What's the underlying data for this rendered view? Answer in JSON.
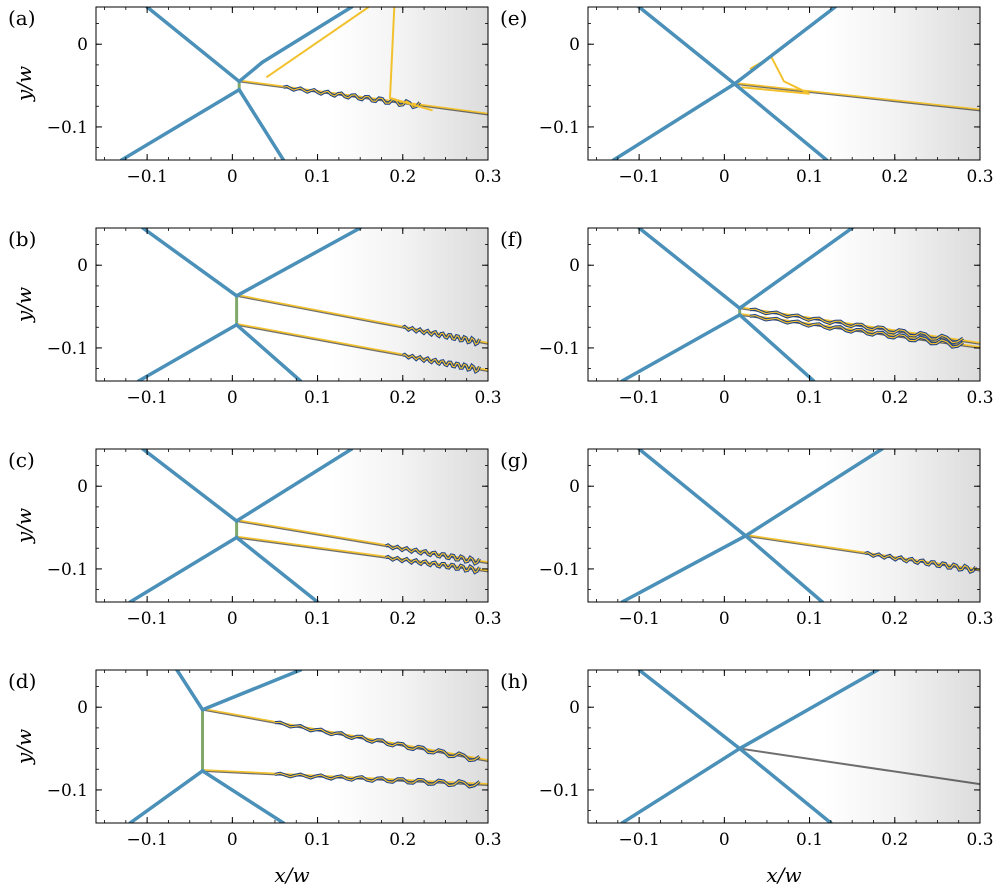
{
  "figure": {
    "xlabel": "x/w",
    "ylabel": "y/w",
    "xlim": [
      -0.16,
      0.3
    ],
    "ylim": [
      -0.14,
      0.045
    ],
    "x_ticks": [
      -0.1,
      0,
      0.1,
      0.2,
      0.3
    ],
    "x_tick_labels": [
      "−0.1",
      "0",
      "0.1",
      "0.2",
      "0.3"
    ],
    "y_ticks": [
      0,
      -0.1
    ],
    "y_tick_labels": [
      "0",
      "−0.1"
    ],
    "colors": {
      "shock": "#4a90b8",
      "contour_yellow": "#f2c12e",
      "contour_green": "#7fa86a",
      "vortex_blue": "#1a3f8a",
      "schlieren": "#000000"
    }
  },
  "chart_data": [
    {
      "type": "other",
      "label": "(a)",
      "triple_point": [
        0.008,
        -0.045
      ],
      "lower_point": [
        0.008,
        -0.055
      ],
      "shocks": [
        [
          -0.1,
          0.045
        ],
        [
          0.06,
          -0.14
        ],
        [
          -0.13,
          -0.14
        ],
        [
          0.035,
          -0.022
        ],
        [
          0.14,
          0.045
        ]
      ],
      "slip_lines": [
        [
          [
            0.008,
            -0.045
          ],
          [
            0.3,
            -0.085
          ]
        ]
      ],
      "contours": [
        [
          [
            0.04,
            -0.04
          ],
          [
            0.16,
            0.045
          ]
        ],
        [
          [
            0.19,
            0.045
          ],
          [
            0.185,
            -0.065
          ],
          [
            0.235,
            -0.08
          ]
        ]
      ],
      "wavy": [
        [
          0.06,
          -0.06
        ],
        [
          0.22,
          -0.077
        ]
      ]
    },
    {
      "type": "other",
      "label": "(b)",
      "triple_point": [
        0.005,
        -0.037
      ],
      "lower_point": [
        0.005,
        -0.072
      ],
      "shocks": [
        [
          -0.105,
          0.045
        ],
        [
          0.08,
          -0.14
        ],
        [
          -0.11,
          -0.14
        ],
        [
          0.15,
          0.045
        ]
      ],
      "slip_lines": [
        [
          [
            0.005,
            -0.037
          ],
          [
            0.3,
            -0.095
          ]
        ],
        [
          [
            0.005,
            -0.072
          ],
          [
            0.3,
            -0.128
          ]
        ]
      ],
      "contours": [],
      "wavy": [
        [
          0.2,
          -0.09
        ],
        [
          0.29,
          -0.128
        ]
      ]
    },
    {
      "type": "other",
      "label": "(c)",
      "triple_point": [
        0.005,
        -0.042
      ],
      "lower_point": [
        0.005,
        -0.062
      ],
      "shocks": [
        [
          -0.105,
          0.045
        ],
        [
          0.1,
          -0.14
        ],
        [
          -0.12,
          -0.14
        ],
        [
          0.14,
          0.045
        ]
      ],
      "slip_lines": [
        [
          [
            0.005,
            -0.042
          ],
          [
            0.3,
            -0.093
          ]
        ],
        [
          [
            0.005,
            -0.062
          ],
          [
            0.3,
            -0.103
          ]
        ]
      ],
      "contours": [],
      "wavy": [
        [
          0.18,
          -0.085
        ],
        [
          0.29,
          -0.103
        ]
      ]
    },
    {
      "type": "other",
      "label": "(d)",
      "triple_point": [
        -0.035,
        -0.003
      ],
      "lower_point": [
        -0.035,
        -0.077
      ],
      "shocks": [
        [
          -0.065,
          0.045
        ],
        [
          0.06,
          -0.14
        ],
        [
          -0.12,
          -0.14
        ],
        [
          0.08,
          0.045
        ]
      ],
      "slip_lines": [
        [
          [
            -0.035,
            -0.003
          ],
          [
            0.3,
            -0.065
          ]
        ],
        [
          [
            -0.035,
            -0.077
          ],
          [
            0.3,
            -0.094
          ]
        ]
      ],
      "contours": [],
      "wavy": [
        [
          0.05,
          -0.082
        ],
        [
          0.29,
          -0.094
        ]
      ]
    },
    {
      "type": "other",
      "label": "(e)",
      "triple_point": [
        0.012,
        -0.048
      ],
      "lower_point": [
        0.012,
        -0.048
      ],
      "shocks": [
        [
          -0.1,
          0.045
        ],
        [
          0.12,
          -0.14
        ],
        [
          -0.13,
          -0.14
        ],
        [
          0.13,
          0.045
        ]
      ],
      "slip_lines": [
        [
          [
            0.012,
            -0.048
          ],
          [
            0.3,
            -0.08
          ]
        ]
      ],
      "contours": [
        [
          [
            0.03,
            -0.03
          ],
          [
            0.055,
            -0.015
          ],
          [
            0.07,
            -0.045
          ],
          [
            0.1,
            -0.06
          ],
          [
            0.02,
            -0.052
          ]
        ]
      ],
      "wavy": []
    },
    {
      "type": "other",
      "label": "(f)",
      "triple_point": [
        0.018,
        -0.052
      ],
      "lower_point": [
        0.018,
        -0.06
      ],
      "shocks": [
        [
          -0.1,
          0.045
        ],
        [
          0.105,
          -0.14
        ],
        [
          -0.12,
          -0.14
        ],
        [
          0.15,
          0.045
        ]
      ],
      "slip_lines": [
        [
          [
            0.018,
            -0.052
          ],
          [
            0.3,
            -0.095
          ]
        ],
        [
          [
            0.018,
            -0.06
          ],
          [
            0.3,
            -0.1
          ]
        ]
      ],
      "contours": [],
      "wavy": [
        [
          0.03,
          -0.06
        ],
        [
          0.28,
          -0.1
        ]
      ]
    },
    {
      "type": "other",
      "label": "(g)",
      "triple_point": [
        0.025,
        -0.06
      ],
      "lower_point": [
        0.025,
        -0.06
      ],
      "shocks": [
        [
          -0.1,
          0.045
        ],
        [
          0.115,
          -0.14
        ],
        [
          -0.12,
          -0.14
        ],
        [
          0.185,
          0.045
        ]
      ],
      "slip_lines": [
        [
          [
            0.025,
            -0.06
          ],
          [
            0.3,
            -0.102
          ]
        ]
      ],
      "contours": [],
      "wavy": [
        [
          0.165,
          -0.085
        ],
        [
          0.295,
          -0.102
        ]
      ]
    },
    {
      "type": "other",
      "label": "(h)",
      "triple_point": [
        0.018,
        -0.05
      ],
      "lower_point": [
        0.018,
        -0.05
      ],
      "shocks": [
        [
          -0.1,
          0.045
        ],
        [
          0.125,
          -0.14
        ],
        [
          -0.12,
          -0.14
        ],
        [
          0.18,
          0.045
        ]
      ],
      "slip_lines": [
        [
          [
            0.018,
            -0.05
          ],
          [
            0.3,
            -0.093
          ]
        ]
      ],
      "contours": [],
      "wavy": []
    }
  ]
}
